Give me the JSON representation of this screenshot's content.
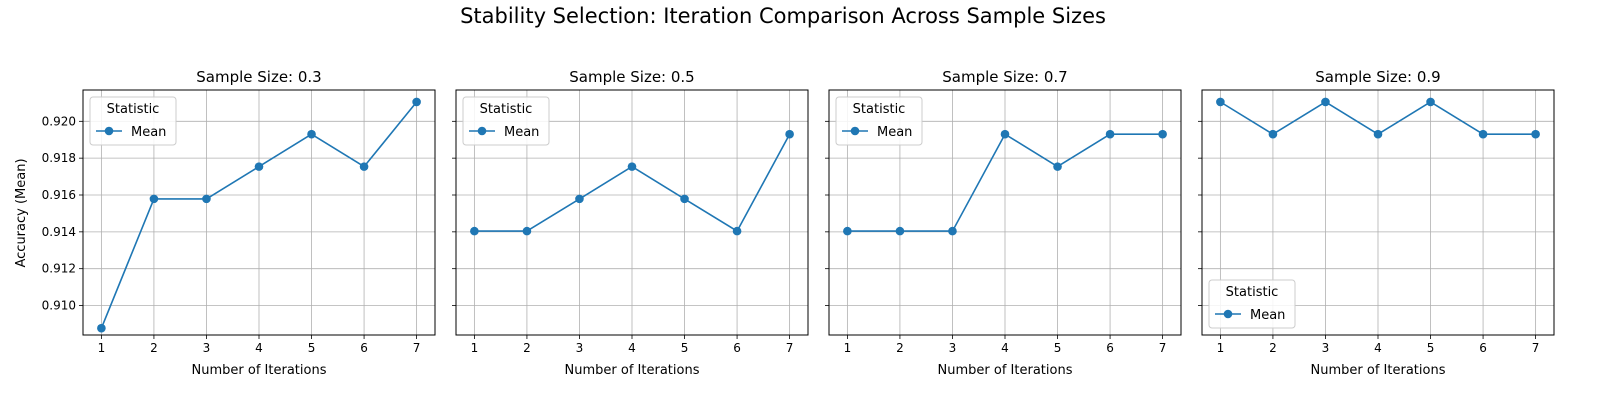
{
  "figure": {
    "title": "Stability Selection: Iteration Comparison Across Sample Sizes",
    "ylabel": "Accuracy (Mean)",
    "xlabel": "Number of Iterations",
    "legend_title": "Statistic",
    "legend_entry": "Mean",
    "line_color": "#1f77b4"
  },
  "chart_data": [
    {
      "type": "line",
      "title": "Sample Size: 0.3",
      "xlabel": "Number of Iterations",
      "ylabel": "Accuracy (Mean)",
      "x": [
        1,
        2,
        3,
        4,
        5,
        6,
        7
      ],
      "series": [
        {
          "name": "Mean",
          "values": [
            0.90877,
            0.91579,
            0.91579,
            0.91754,
            0.9193,
            0.91754,
            0.92105
          ]
        }
      ],
      "xlim": [
        0.65,
        7.35
      ],
      "ylim": [
        0.9084,
        0.9217
      ],
      "xticks": [
        "1",
        "2",
        "3",
        "4",
        "5",
        "6",
        "7"
      ],
      "yticks": [
        "0.910",
        "0.912",
        "0.914",
        "0.916",
        "0.918",
        "0.920"
      ],
      "grid": true,
      "legend_title": "Statistic",
      "legend_placement": "upper left"
    },
    {
      "type": "line",
      "title": "Sample Size: 0.5",
      "xlabel": "Number of Iterations",
      "x": [
        1,
        2,
        3,
        4,
        5,
        6,
        7
      ],
      "series": [
        {
          "name": "Mean",
          "values": [
            0.91404,
            0.91404,
            0.91579,
            0.91754,
            0.91579,
            0.91404,
            0.9193
          ]
        }
      ],
      "xlim": [
        0.65,
        7.35
      ],
      "ylim": [
        0.9084,
        0.9217
      ],
      "xticks": [
        "1",
        "2",
        "3",
        "4",
        "5",
        "6",
        "7"
      ],
      "grid": true,
      "legend_title": "Statistic",
      "legend_placement": "upper left"
    },
    {
      "type": "line",
      "title": "Sample Size: 0.7",
      "xlabel": "Number of Iterations",
      "x": [
        1,
        2,
        3,
        4,
        5,
        6,
        7
      ],
      "series": [
        {
          "name": "Mean",
          "values": [
            0.91404,
            0.91404,
            0.91404,
            0.9193,
            0.91754,
            0.9193,
            0.9193
          ]
        }
      ],
      "xlim": [
        0.65,
        7.35
      ],
      "ylim": [
        0.9084,
        0.9217
      ],
      "xticks": [
        "1",
        "2",
        "3",
        "4",
        "5",
        "6",
        "7"
      ],
      "grid": true,
      "legend_title": "Statistic",
      "legend_placement": "upper left"
    },
    {
      "type": "line",
      "title": "Sample Size: 0.9",
      "xlabel": "Number of Iterations",
      "x": [
        1,
        2,
        3,
        4,
        5,
        6,
        7
      ],
      "series": [
        {
          "name": "Mean",
          "values": [
            0.92105,
            0.9193,
            0.92105,
            0.9193,
            0.92105,
            0.9193,
            0.9193
          ]
        }
      ],
      "xlim": [
        0.65,
        7.35
      ],
      "ylim": [
        0.9084,
        0.9217
      ],
      "xticks": [
        "1",
        "2",
        "3",
        "4",
        "5",
        "6",
        "7"
      ],
      "grid": true,
      "legend_title": "Statistic",
      "legend_placement": "lower left"
    }
  ]
}
